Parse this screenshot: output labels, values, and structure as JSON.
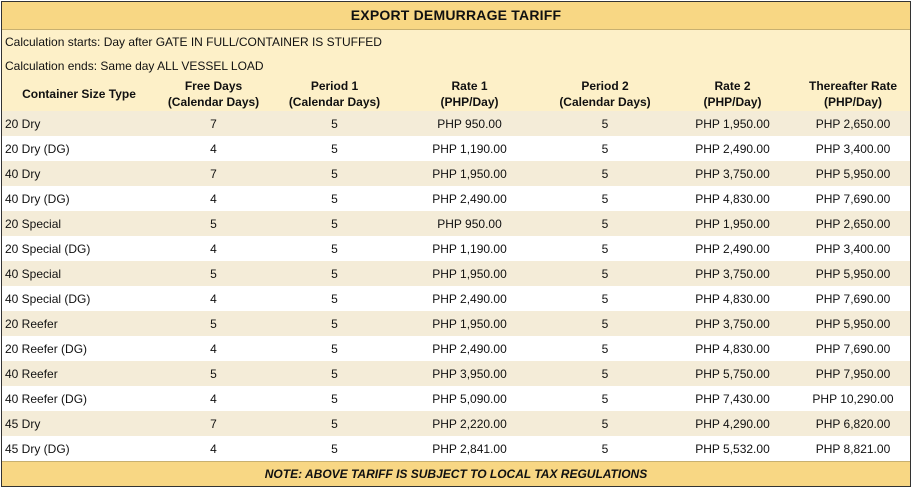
{
  "title": "EXPORT DEMURRAGE TARIFF",
  "calc_start": "Calculation starts: Day after GATE IN FULL/CONTAINER IS STUFFED",
  "calc_end": "Calculation ends: Same day ALL VESSEL LOAD",
  "headers": {
    "container": "Container Size Type",
    "free_days": [
      "Free Days",
      "(Calendar Days)"
    ],
    "period1": [
      "Period 1",
      "(Calendar Days)"
    ],
    "rate1": [
      "Rate 1",
      "(PHP/Day)"
    ],
    "period2": [
      "Period 2",
      "(Calendar Days)"
    ],
    "rate2": [
      "Rate 2",
      "(PHP/Day)"
    ],
    "thereafter": [
      "Thereafter Rate",
      "(PHP/Day)"
    ]
  },
  "rows": [
    [
      "20 Dry",
      "7",
      "5",
      "PHP 950.00",
      "5",
      "PHP 1,950.00",
      "PHP 2,650.00"
    ],
    [
      "20 Dry (DG)",
      "4",
      "5",
      "PHP 1,190.00",
      "5",
      "PHP 2,490.00",
      "PHP 3,400.00"
    ],
    [
      "40 Dry",
      "7",
      "5",
      "PHP 1,950.00",
      "5",
      "PHP 3,750.00",
      "PHP 5,950.00"
    ],
    [
      "40 Dry (DG)",
      "4",
      "5",
      "PHP 2,490.00",
      "5",
      "PHP 4,830.00",
      "PHP 7,690.00"
    ],
    [
      "20 Special",
      "5",
      "5",
      "PHP 950.00",
      "5",
      "PHP 1,950.00",
      "PHP 2,650.00"
    ],
    [
      "20 Special (DG)",
      "4",
      "5",
      "PHP 1,190.00",
      "5",
      "PHP 2,490.00",
      "PHP 3,400.00"
    ],
    [
      "40 Special",
      "5",
      "5",
      "PHP 1,950.00",
      "5",
      "PHP 3,750.00",
      "PHP 5,950.00"
    ],
    [
      "40 Special (DG)",
      "4",
      "5",
      "PHP 2,490.00",
      "5",
      "PHP 4,830.00",
      "PHP 7,690.00"
    ],
    [
      "20 Reefer",
      "5",
      "5",
      "PHP 1,950.00",
      "5",
      "PHP 3,750.00",
      "PHP 5,950.00"
    ],
    [
      "20 Reefer (DG)",
      "4",
      "5",
      "PHP 2,490.00",
      "5",
      "PHP 4,830.00",
      "PHP 7,690.00"
    ],
    [
      "40 Reefer",
      "5",
      "5",
      "PHP 3,950.00",
      "5",
      "PHP 5,750.00",
      "PHP 7,950.00"
    ],
    [
      "40 Reefer (DG)",
      "4",
      "5",
      "PHP 5,090.00",
      "5",
      "PHP 7,430.00",
      "PHP 10,290.00"
    ],
    [
      "45 Dry",
      "7",
      "5",
      "PHP 2,220.00",
      "5",
      "PHP 4,290.00",
      "PHP 6,820.00"
    ],
    [
      "45 Dry (DG)",
      "4",
      "5",
      "PHP 2,841.00",
      "5",
      "PHP 5,532.00",
      "PHP 8,821.00"
    ]
  ],
  "footer_note": "NOTE: ABOVE TARIFF IS SUBJECT TO LOCAL TAX REGULATIONS",
  "colors": {
    "title_bg": "#f8d784",
    "header_bg": "#fdf0c8",
    "band_bg": "#f4ecd8",
    "row_bg": "#ffffff"
  }
}
